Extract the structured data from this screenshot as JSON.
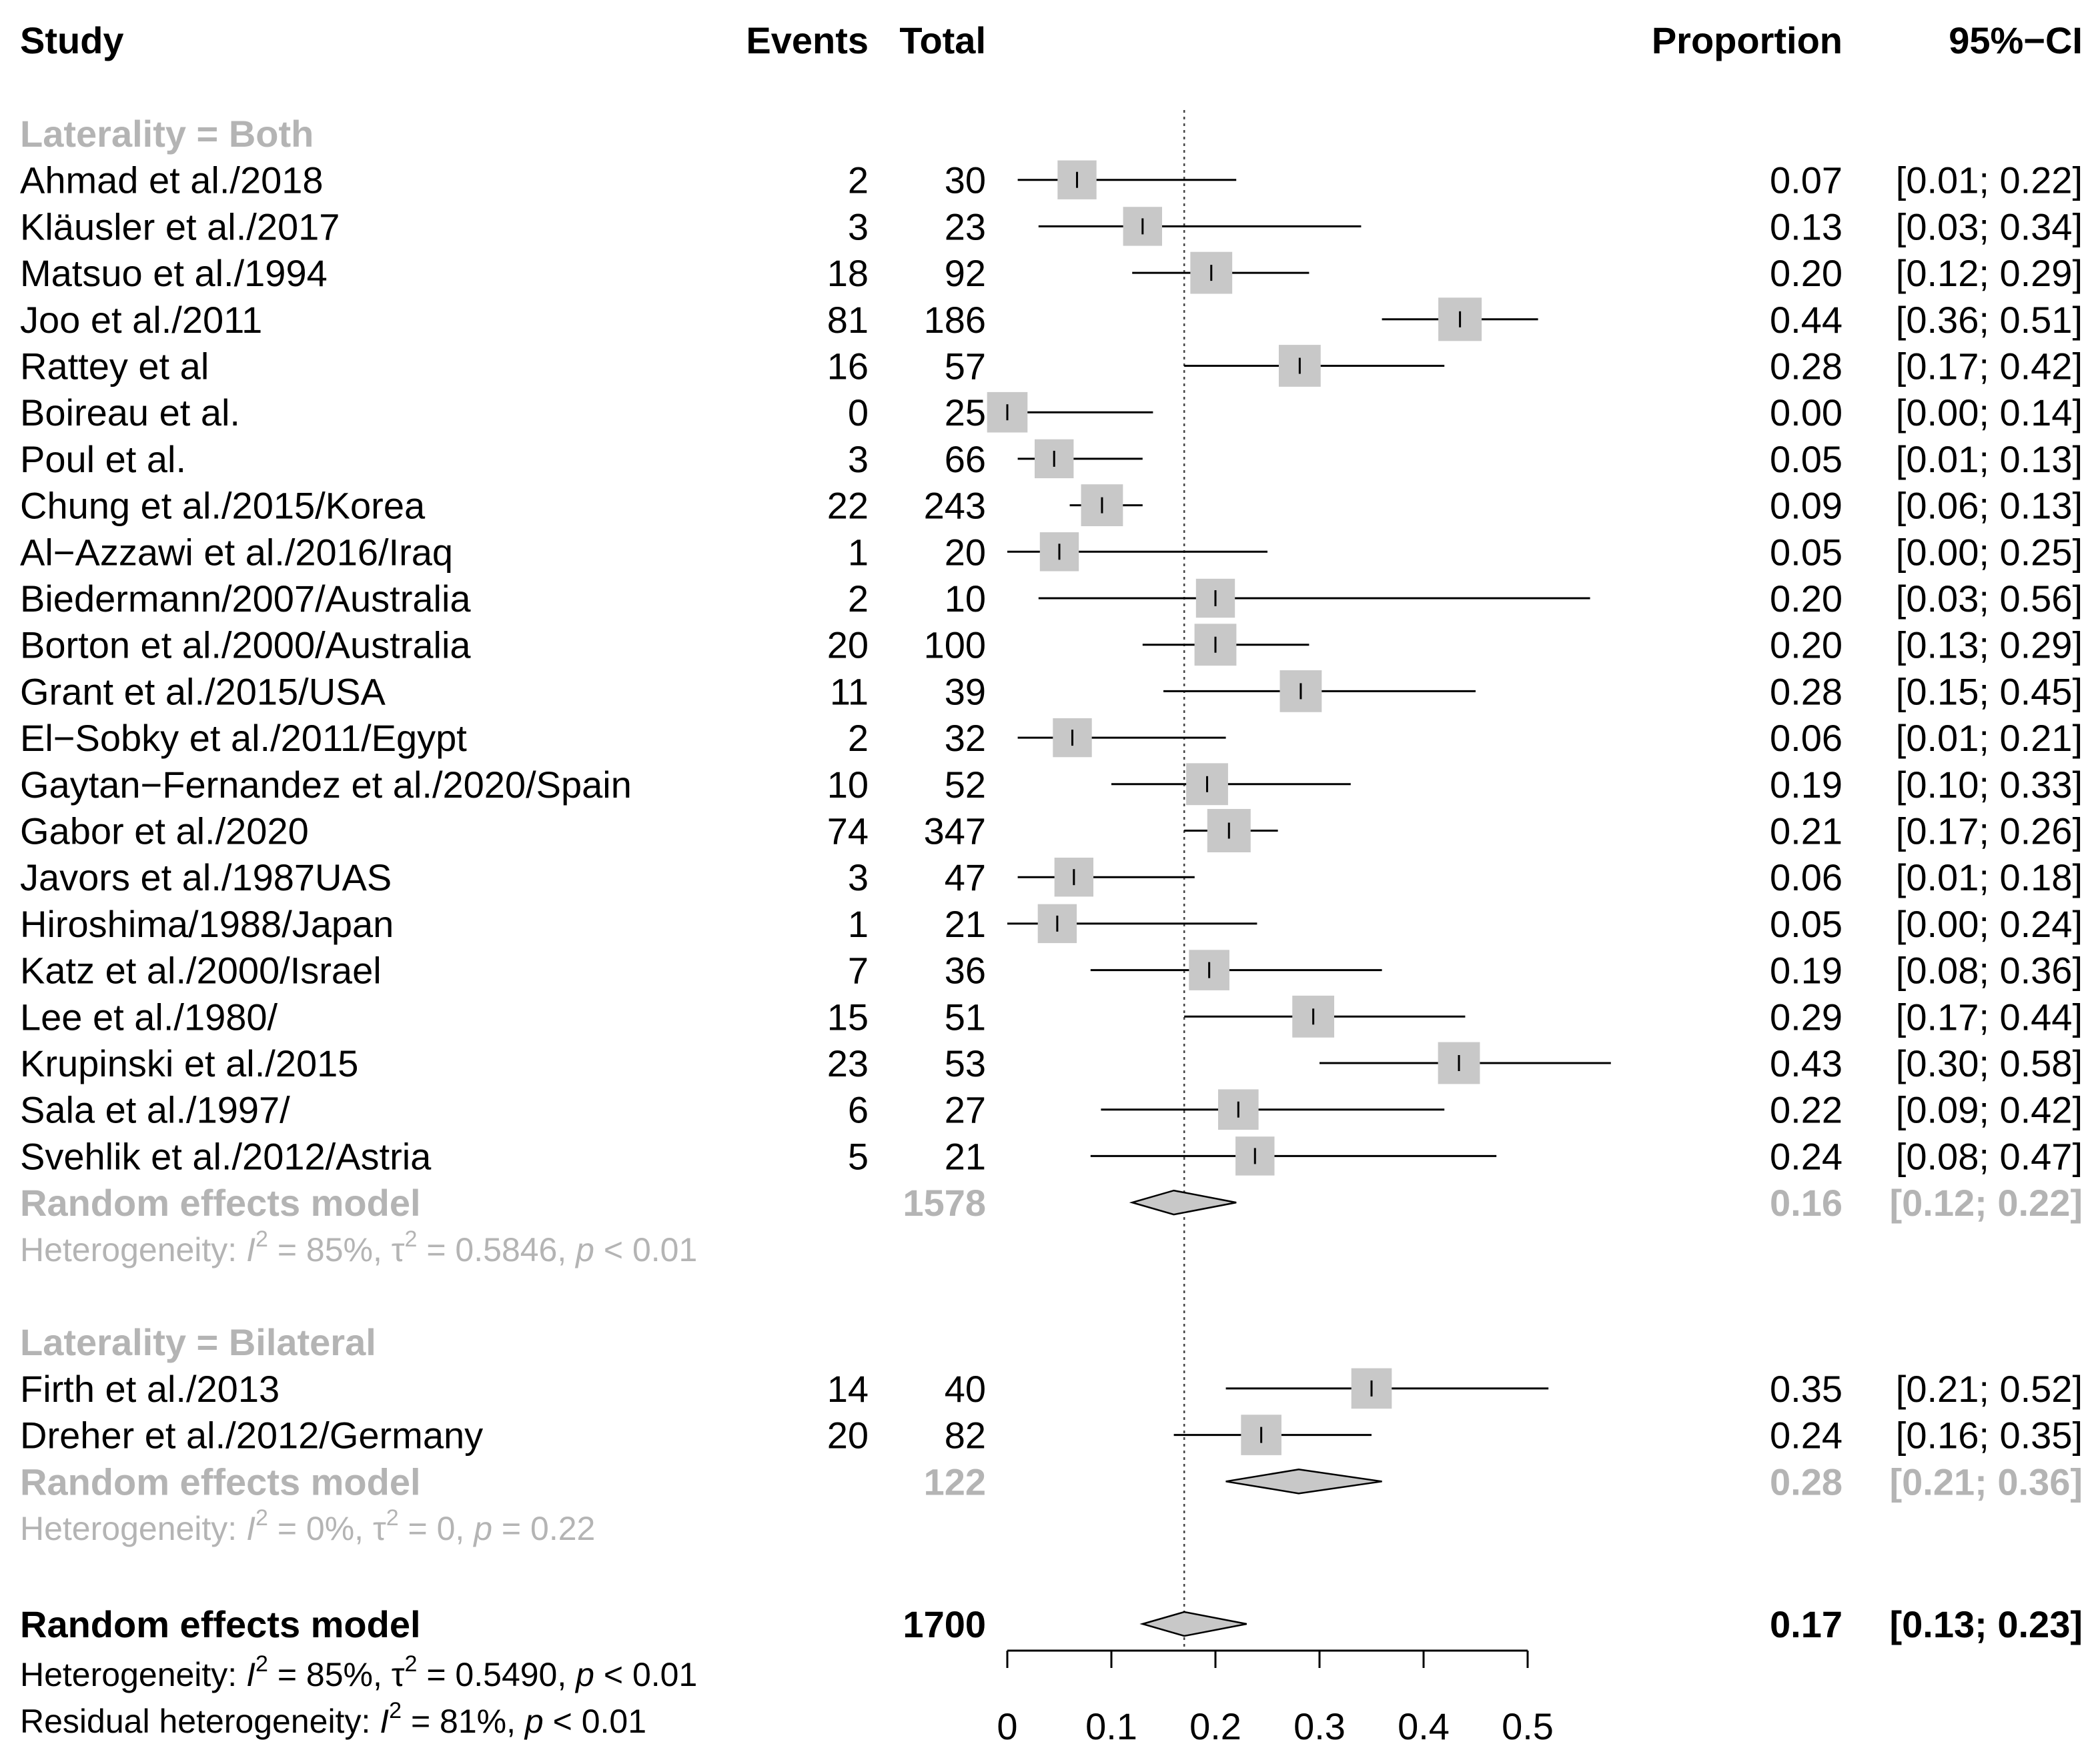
{
  "headers": {
    "study": "Study",
    "events": "Events",
    "total": "Total",
    "proportion": "Proportion",
    "ci": "95%−CI"
  },
  "colors": {
    "text": "#000000",
    "subtotal_gray": "#b4b4b4",
    "box_fill": "#c8c8c8",
    "diamond_fill": "#c8c8c8"
  },
  "chart_data": {
    "type": "forest",
    "xlim": [
      0,
      0.5
    ],
    "axis_ticks": [
      "0",
      "0.1",
      "0.2",
      "0.3",
      "0.4",
      "0.5"
    ],
    "reference_line": 0.17,
    "groups": [
      {
        "label": "Laterality = Both",
        "studies": [
          {
            "name": "Ahmad et al./2018",
            "events": "2",
            "total": "30",
            "prop": "0.07",
            "ci": "[0.01; 0.22]",
            "est": 0.067,
            "lo": 0.01,
            "hi": 0.22,
            "w": 0.6
          },
          {
            "name": "Kläusler et al./2017",
            "events": "3",
            "total": "23",
            "prop": "0.13",
            "ci": "[0.03; 0.34]",
            "est": 0.13,
            "lo": 0.03,
            "hi": 0.34,
            "w": 0.6
          },
          {
            "name": "Matsuo et al./1994",
            "events": "18",
            "total": "92",
            "prop": "0.20",
            "ci": "[0.12; 0.29]",
            "est": 0.196,
            "lo": 0.12,
            "hi": 0.29,
            "w": 0.7
          },
          {
            "name": "Joo et al./2011",
            "events": "81",
            "total": "186",
            "prop": "0.44",
            "ci": "[0.36; 0.51]",
            "est": 0.435,
            "lo": 0.36,
            "hi": 0.51,
            "w": 0.75
          },
          {
            "name": "Rattey et al",
            "events": "16",
            "total": "57",
            "prop": "0.28",
            "ci": "[0.17; 0.42]",
            "est": 0.281,
            "lo": 0.17,
            "hi": 0.42,
            "w": 0.7
          },
          {
            "name": "Boireau et al.",
            "events": "0",
            "total": "25",
            "prop": "0.00",
            "ci": "[0.00; 0.14]",
            "est": 0.0,
            "lo": 0.0,
            "hi": 0.14,
            "w": 0.65
          },
          {
            "name": "Poul et al.",
            "events": "3",
            "total": "66",
            "prop": "0.05",
            "ci": "[0.01; 0.13]",
            "est": 0.045,
            "lo": 0.01,
            "hi": 0.13,
            "w": 0.6
          },
          {
            "name": "Chung et al./2015/Korea",
            "events": "22",
            "total": "243",
            "prop": "0.09",
            "ci": "[0.06; 0.13]",
            "est": 0.091,
            "lo": 0.06,
            "hi": 0.13,
            "w": 0.7
          },
          {
            "name": "Al−Azzawi et al./2016/Iraq",
            "events": "1",
            "total": "20",
            "prop": "0.05",
            "ci": "[0.00; 0.25]",
            "est": 0.05,
            "lo": 0.0,
            "hi": 0.25,
            "w": 0.6
          },
          {
            "name": "Biedermann/2007/Australia",
            "events": "2",
            "total": "10",
            "prop": "0.20",
            "ci": "[0.03; 0.56]",
            "est": 0.2,
            "lo": 0.03,
            "hi": 0.56,
            "w": 0.6
          },
          {
            "name": "Borton et al./2000/Australia",
            "events": "20",
            "total": "100",
            "prop": "0.20",
            "ci": "[0.13; 0.29]",
            "est": 0.2,
            "lo": 0.13,
            "hi": 0.29,
            "w": 0.7
          },
          {
            "name": "Grant et al./2015/USA",
            "events": "11",
            "total": "39",
            "prop": "0.28",
            "ci": "[0.15; 0.45]",
            "est": 0.282,
            "lo": 0.15,
            "hi": 0.45,
            "w": 0.7
          },
          {
            "name": "El−Sobky et al./2011/Egypt",
            "events": "2",
            "total": "32",
            "prop": "0.06",
            "ci": "[0.01; 0.21]",
            "est": 0.0625,
            "lo": 0.01,
            "hi": 0.21,
            "w": 0.6
          },
          {
            "name": "Gaytan−Fernandez et al./2020/Spain",
            "events": "10",
            "total": "52",
            "prop": "0.19",
            "ci": "[0.10; 0.33]",
            "est": 0.192,
            "lo": 0.1,
            "hi": 0.33,
            "w": 0.7
          },
          {
            "name": "Gabor et al./2020",
            "events": "74",
            "total": "347",
            "prop": "0.21",
            "ci": "[0.17; 0.26]",
            "est": 0.213,
            "lo": 0.17,
            "hi": 0.26,
            "w": 0.75
          },
          {
            "name": "Javors et al./1987UAS",
            "events": "3",
            "total": "47",
            "prop": "0.06",
            "ci": "[0.01; 0.18]",
            "est": 0.064,
            "lo": 0.01,
            "hi": 0.18,
            "w": 0.6
          },
          {
            "name": "Hiroshima/1988/Japan",
            "events": "1",
            "total": "21",
            "prop": "0.05",
            "ci": "[0.00; 0.24]",
            "est": 0.048,
            "lo": 0.0,
            "hi": 0.24,
            "w": 0.6
          },
          {
            "name": "Katz et al./2000/Israel",
            "events": "7",
            "total": "36",
            "prop": "0.19",
            "ci": "[0.08; 0.36]",
            "est": 0.194,
            "lo": 0.08,
            "hi": 0.36,
            "w": 0.65
          },
          {
            "name": "Lee et al./1980/",
            "events": "15",
            "total": "51",
            "prop": "0.29",
            "ci": "[0.17; 0.44]",
            "est": 0.294,
            "lo": 0.17,
            "hi": 0.44,
            "w": 0.7
          },
          {
            "name": "Krupinski et al./2015",
            "events": "23",
            "total": "53",
            "prop": "0.43",
            "ci": "[0.30; 0.58]",
            "est": 0.434,
            "lo": 0.3,
            "hi": 0.58,
            "w": 0.7
          },
          {
            "name": "Sala et al./1997/",
            "events": "6",
            "total": "27",
            "prop": "0.22",
            "ci": "[0.09; 0.42]",
            "est": 0.222,
            "lo": 0.09,
            "hi": 0.42,
            "w": 0.65
          },
          {
            "name": "Svehlik et al./2012/Astria",
            "events": "5",
            "total": "21",
            "prop": "0.24",
            "ci": "[0.08; 0.47]",
            "est": 0.238,
            "lo": 0.08,
            "hi": 0.47,
            "w": 0.6
          }
        ],
        "model": {
          "label": "Random effects model",
          "total": "1578",
          "prop": "0.16",
          "ci": "[0.12; 0.22]",
          "est": 0.16,
          "lo": 0.12,
          "hi": 0.22
        },
        "heterogeneity": {
          "lead": "Heterogeneity: ",
          "i2_sym": "I",
          "i2_val": " = 85%, ",
          "tau_sym": "τ",
          "tau_val": " = 0.5846, ",
          "p_sym": "p",
          "p_val": " < 0.01",
          "exp": "2"
        }
      },
      {
        "label": "Laterality = Bilateral",
        "studies": [
          {
            "name": "Firth et al./2013",
            "events": "14",
            "total": "40",
            "prop": "0.35",
            "ci": "[0.21; 0.52]",
            "est": 0.35,
            "lo": 0.21,
            "hi": 0.52,
            "w": 0.65
          },
          {
            "name": "Dreher et al./2012/Germany",
            "events": "20",
            "total": "82",
            "prop": "0.24",
            "ci": "[0.16; 0.35]",
            "est": 0.244,
            "lo": 0.16,
            "hi": 0.35,
            "w": 0.65
          }
        ],
        "model": {
          "label": "Random effects model",
          "total": "122",
          "prop": "0.28",
          "ci": "[0.21; 0.36]",
          "est": 0.28,
          "lo": 0.21,
          "hi": 0.36
        },
        "heterogeneity": {
          "lead": "Heterogeneity: ",
          "i2_sym": "I",
          "i2_val": " = 0%, ",
          "tau_sym": "τ",
          "tau_val": " = 0, ",
          "p_sym": "p",
          "p_val": " = 0.22",
          "exp": "2"
        }
      }
    ],
    "overall": {
      "label": "Random effects model",
      "total": "1700",
      "prop": "0.17",
      "ci": "[0.13; 0.23]",
      "est": 0.17,
      "lo": 0.13,
      "hi": 0.23,
      "heterogeneity": {
        "lead": "Heterogeneity: ",
        "i2_sym": "I",
        "i2_val": " = 85%, ",
        "tau_sym": "τ",
        "tau_val": " = 0.5490, ",
        "p_sym": "p",
        "p_val": " < 0.01",
        "exp": "2"
      },
      "residual": {
        "lead": "Residual heterogeneity: ",
        "i2_sym": "I",
        "i2_val": " = 81%, ",
        "p_sym": "p",
        "p_val": " < 0.01",
        "exp": "2"
      }
    }
  }
}
